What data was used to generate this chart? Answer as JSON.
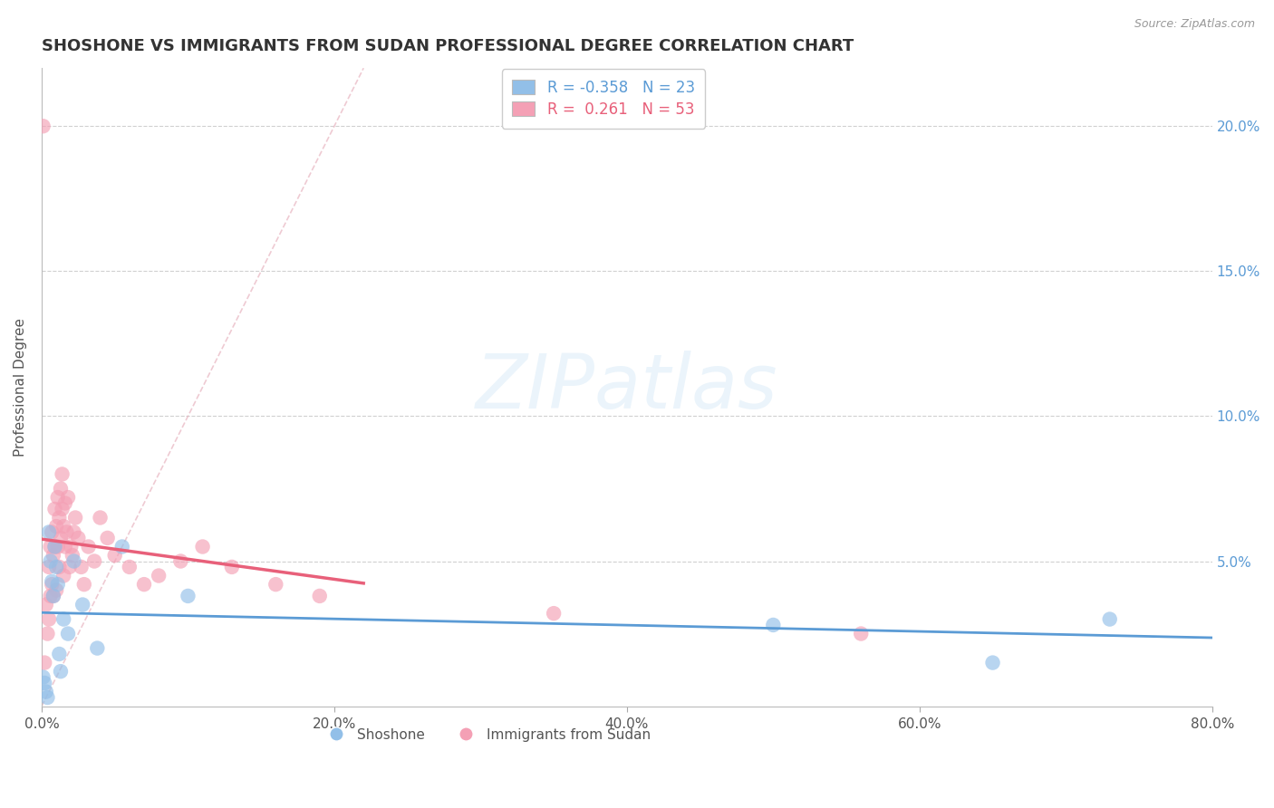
{
  "title": "SHOSHONE VS IMMIGRANTS FROM SUDAN PROFESSIONAL DEGREE CORRELATION CHART",
  "source": "Source: ZipAtlas.com",
  "ylabel": "Professional Degree",
  "xlim": [
    0.0,
    0.8
  ],
  "ylim": [
    0.0,
    0.22
  ],
  "xtick_vals": [
    0.0,
    0.2,
    0.4,
    0.6,
    0.8
  ],
  "xtick_labels": [
    "0.0%",
    "20.0%",
    "40.0%",
    "60.0%",
    "80.0%"
  ],
  "ytick_vals": [
    0.05,
    0.1,
    0.15,
    0.2
  ],
  "ytick_labels": [
    "5.0%",
    "10.0%",
    "15.0%",
    "20.0%"
  ],
  "shoshone_color": "#92bfe8",
  "sudan_color": "#f4a0b5",
  "shoshone_trend_color": "#5b9bd5",
  "sudan_trend_color": "#e8607a",
  "diag_color": "#e8b4c0",
  "right_axis_color": "#5b9bd5",
  "grid_color": "#d0d0d0",
  "title_color": "#333333",
  "source_color": "#999999",
  "shoshone_R": -0.358,
  "shoshone_N": 23,
  "sudan_R": 0.261,
  "sudan_N": 53,
  "shoshone_x": [
    0.001,
    0.002,
    0.003,
    0.004,
    0.005,
    0.006,
    0.007,
    0.008,
    0.009,
    0.01,
    0.011,
    0.012,
    0.013,
    0.015,
    0.018,
    0.022,
    0.028,
    0.038,
    0.055,
    0.1,
    0.5,
    0.65,
    0.73
  ],
  "shoshone_y": [
    0.01,
    0.008,
    0.005,
    0.003,
    0.06,
    0.05,
    0.043,
    0.038,
    0.055,
    0.048,
    0.042,
    0.018,
    0.012,
    0.03,
    0.025,
    0.05,
    0.035,
    0.02,
    0.055,
    0.038,
    0.028,
    0.015,
    0.03
  ],
  "sudan_x": [
    0.001,
    0.002,
    0.003,
    0.004,
    0.005,
    0.005,
    0.006,
    0.006,
    0.007,
    0.007,
    0.008,
    0.008,
    0.009,
    0.009,
    0.01,
    0.01,
    0.011,
    0.011,
    0.012,
    0.012,
    0.013,
    0.013,
    0.014,
    0.014,
    0.015,
    0.015,
    0.016,
    0.016,
    0.017,
    0.018,
    0.019,
    0.02,
    0.021,
    0.022,
    0.023,
    0.025,
    0.027,
    0.029,
    0.032,
    0.036,
    0.04,
    0.045,
    0.05,
    0.06,
    0.07,
    0.08,
    0.095,
    0.11,
    0.13,
    0.16,
    0.19,
    0.35,
    0.56
  ],
  "sudan_y": [
    0.2,
    0.015,
    0.035,
    0.025,
    0.03,
    0.048,
    0.038,
    0.055,
    0.042,
    0.06,
    0.038,
    0.052,
    0.055,
    0.068,
    0.04,
    0.062,
    0.055,
    0.072,
    0.048,
    0.065,
    0.058,
    0.075,
    0.068,
    0.08,
    0.045,
    0.062,
    0.055,
    0.07,
    0.06,
    0.072,
    0.048,
    0.055,
    0.052,
    0.06,
    0.065,
    0.058,
    0.048,
    0.042,
    0.055,
    0.05,
    0.065,
    0.058,
    0.052,
    0.048,
    0.042,
    0.045,
    0.05,
    0.055,
    0.048,
    0.042,
    0.038,
    0.032,
    0.025
  ],
  "sudan_trend_x0": 0.0,
  "sudan_trend_x1": 0.22,
  "shoshone_trend_x0": 0.0,
  "shoshone_trend_x1": 0.8
}
